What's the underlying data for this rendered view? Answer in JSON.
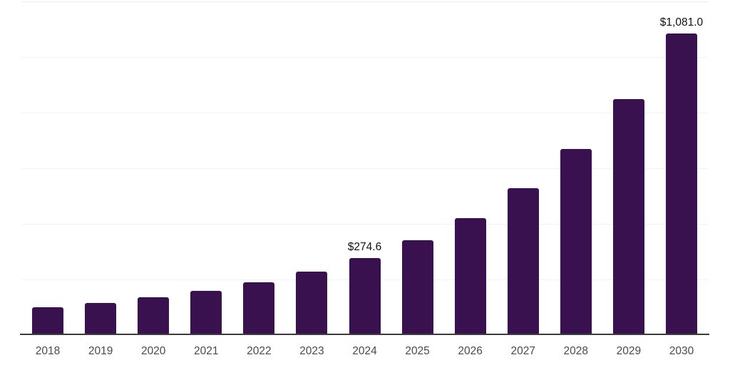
{
  "chart_data": {
    "type": "bar",
    "title": "",
    "xlabel": "",
    "ylabel": "",
    "categories": [
      "2018",
      "2019",
      "2020",
      "2021",
      "2022",
      "2023",
      "2024",
      "2025",
      "2026",
      "2027",
      "2028",
      "2029",
      "2030"
    ],
    "values": [
      98.0,
      113.4,
      132.6,
      156.9,
      187.7,
      226.8,
      274.6,
      338.7,
      417.3,
      525.6,
      666.3,
      847.4,
      1081.0
    ],
    "data_labels": {
      "2024": "$274.6",
      "2030": "$1,081.0"
    },
    "ylim": [
      0,
      1200
    ],
    "gridline_step": 200,
    "grid": "horizontal",
    "legend_position": "none",
    "colors": {
      "bar": "#38114e",
      "axis_line": "#3c3c3c",
      "gridline": "#f2f2f2",
      "top_gridline": "#eaeaea",
      "value_label": "#111111",
      "tick_label": "#4a4a4a",
      "background": "#ffffff"
    }
  }
}
